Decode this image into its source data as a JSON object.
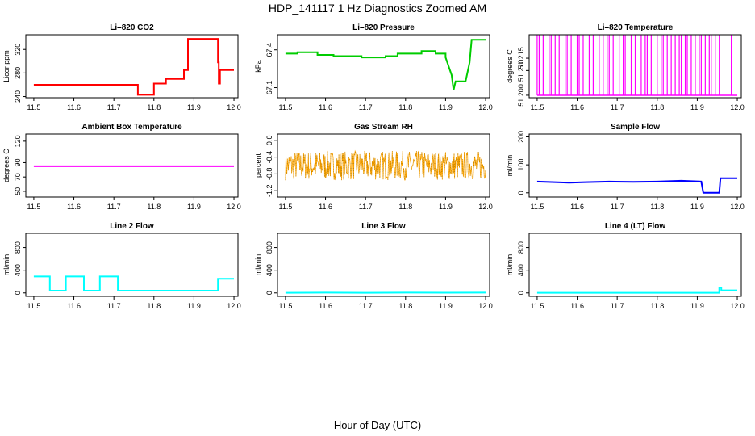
{
  "figure": {
    "title": "HDP_141117  1 Hz Diagnostics Zoomed AM",
    "xlabel": "Hour of Day (UTC)"
  },
  "chart_data": [
    {
      "type": "line",
      "title": "Li–820 CO2",
      "ylabel": "Licor ppm",
      "color": "#ff0000",
      "xlim": [
        11.48,
        12.01
      ],
      "ylim": [
        238,
        345
      ],
      "xticks": [
        "11.5",
        "11.6",
        "11.7",
        "11.8",
        "11.9",
        "12.0"
      ],
      "yticks": [
        "240",
        "280",
        "320"
      ],
      "ytick_values": [
        240,
        280,
        320
      ],
      "series": [
        {
          "name": "CO2",
          "x": [
            11.5,
            11.76,
            11.76,
            11.8,
            11.8,
            11.83,
            11.83,
            11.875,
            11.875,
            11.885,
            11.885,
            11.96,
            11.96,
            11.962,
            11.962,
            11.965,
            11.965,
            12.0
          ],
          "y": [
            260,
            260,
            243,
            243,
            262,
            262,
            270,
            270,
            285,
            285,
            338,
            338,
            298,
            298,
            262,
            262,
            285,
            285
          ]
        }
      ]
    },
    {
      "type": "line",
      "title": "Li–820 Pressure",
      "ylabel": "kPa",
      "color": "#00cc00",
      "xlim": [
        11.48,
        12.01
      ],
      "ylim": [
        67.02,
        67.52
      ],
      "xticks": [
        "11.5",
        "11.6",
        "11.7",
        "11.8",
        "11.9",
        "12.0"
      ],
      "yticks": [
        "67.1",
        "67.4"
      ],
      "ytick_values": [
        67.1,
        67.4
      ],
      "series": [
        {
          "name": "Pressure",
          "x": [
            11.5,
            11.53,
            11.53,
            11.58,
            11.58,
            11.62,
            11.62,
            11.69,
            11.69,
            11.75,
            11.75,
            11.78,
            11.78,
            11.84,
            11.84,
            11.875,
            11.875,
            11.9,
            11.9,
            11.915,
            11.92,
            11.925,
            11.95,
            11.96,
            11.965,
            12.0
          ],
          "y": [
            67.37,
            67.37,
            67.38,
            67.38,
            67.36,
            67.36,
            67.35,
            67.35,
            67.34,
            67.34,
            67.35,
            67.35,
            67.37,
            67.37,
            67.39,
            67.39,
            67.37,
            67.37,
            67.34,
            67.2,
            67.08,
            67.15,
            67.15,
            67.3,
            67.48,
            67.48
          ]
        }
      ]
    },
    {
      "type": "line",
      "title": "Li–820 Temperature",
      "ylabel": "degrees C",
      "color": "#ff00ff",
      "xlim": [
        11.48,
        12.01
      ],
      "ylim": [
        51.199,
        51.2245
      ],
      "xticks": [
        "11.5",
        "11.6",
        "11.7",
        "11.8",
        "11.9",
        "12.0"
      ],
      "yticks": [
        "51.200",
        "51.210",
        "51.215"
      ],
      "ytick_values": [
        51.2,
        51.21,
        51.215
      ],
      "baseline": 51.2,
      "spike_value": 51.2245,
      "spikes_x": [
        11.5,
        11.505,
        11.515,
        11.53,
        11.535,
        11.545,
        11.555,
        11.57,
        11.575,
        11.585,
        11.6,
        11.605,
        11.615,
        11.63,
        11.64,
        11.655,
        11.665,
        11.675,
        11.68,
        11.69,
        11.705,
        11.715,
        11.72,
        11.735,
        11.745,
        11.76,
        11.77,
        11.775,
        11.785,
        11.8,
        11.81,
        11.815,
        11.825,
        11.835,
        11.845,
        11.855,
        11.86,
        11.87,
        11.875,
        11.885,
        11.895,
        11.905,
        11.91,
        11.92,
        11.93,
        11.935,
        11.945,
        11.955,
        11.985
      ]
    },
    {
      "type": "line",
      "title": "Ambient Box Temperature",
      "ylabel": "degrees C",
      "color": "#ff00ff",
      "xlim": [
        11.48,
        12.01
      ],
      "ylim": [
        42,
        130
      ],
      "xticks": [
        "11.5",
        "11.6",
        "11.7",
        "11.8",
        "11.9",
        "12.0"
      ],
      "yticks": [
        "50",
        "70",
        "90",
        "120"
      ],
      "ytick_values": [
        50,
        70,
        90,
        120
      ],
      "series": [
        {
          "name": "Ambient",
          "x": [
            11.5,
            12.0
          ],
          "y": [
            85,
            85
          ]
        }
      ]
    },
    {
      "type": "scatter",
      "title": "Gas Stream RH",
      "ylabel": "percent",
      "color": "#ffa500",
      "xlim": [
        11.48,
        12.01
      ],
      "ylim": [
        -1.35,
        0.15
      ],
      "xticks": [
        "11.5",
        "11.6",
        "11.7",
        "11.8",
        "11.9",
        "12.0"
      ],
      "yticks": [
        "-1.2",
        "-0.8",
        "-0.4",
        "0.0"
      ],
      "ytick_values": [
        -1.2,
        -0.8,
        -0.4,
        0.0
      ],
      "band": {
        "center": -0.6,
        "spread": 0.35,
        "x_start": 11.5,
        "x_end": 12.0
      }
    },
    {
      "type": "line",
      "title": "Sample Flow",
      "ylabel": "ml/min",
      "color": "#0000ff",
      "xlim": [
        11.48,
        12.01
      ],
      "ylim": [
        -15,
        210
      ],
      "xticks": [
        "11.5",
        "11.6",
        "11.7",
        "11.8",
        "11.9",
        "12.0"
      ],
      "yticks": [
        "0",
        "100",
        "200"
      ],
      "ytick_values": [
        0,
        100,
        200
      ],
      "series": [
        {
          "name": "Sample",
          "x": [
            11.5,
            11.58,
            11.62,
            11.68,
            11.74,
            11.8,
            11.86,
            11.91,
            11.915,
            11.955,
            11.958,
            12.0
          ],
          "y": [
            40,
            36,
            38,
            40,
            39,
            40,
            43,
            40,
            0,
            0,
            52,
            52
          ]
        }
      ]
    },
    {
      "type": "line",
      "title": "Line 2 Flow",
      "ylabel": "ml/min",
      "color": "#00ffff",
      "xlim": [
        11.48,
        12.01
      ],
      "ylim": [
        -60,
        1050
      ],
      "xticks": [
        "11.5",
        "11.6",
        "11.7",
        "11.8",
        "11.9",
        "12.0"
      ],
      "yticks": [
        "0",
        "400",
        "800"
      ],
      "ytick_values": [
        0,
        400,
        800
      ],
      "series": [
        {
          "name": "Line 2",
          "x": [
            11.5,
            11.54,
            11.54,
            11.58,
            11.58,
            11.625,
            11.625,
            11.665,
            11.665,
            11.71,
            11.71,
            11.96,
            11.96,
            12.0
          ],
          "y": [
            290,
            290,
            40,
            40,
            290,
            290,
            40,
            40,
            290,
            290,
            40,
            40,
            250,
            250
          ]
        }
      ]
    },
    {
      "type": "line",
      "title": "Line 3 Flow",
      "ylabel": "ml/min",
      "color": "#00ffff",
      "xlim": [
        11.48,
        12.01
      ],
      "ylim": [
        -60,
        1050
      ],
      "xticks": [
        "11.5",
        "11.6",
        "11.7",
        "11.8",
        "11.9",
        "12.0"
      ],
      "yticks": [
        "0",
        "400",
        "800"
      ],
      "ytick_values": [
        0,
        400,
        800
      ],
      "series": [
        {
          "name": "Line 3",
          "x": [
            11.5,
            11.6,
            11.7,
            11.8,
            11.9,
            12.0
          ],
          "y": [
            3,
            5,
            3,
            6,
            4,
            5
          ]
        }
      ]
    },
    {
      "type": "line",
      "title": "Line 4 (LT) Flow",
      "ylabel": "ml/min",
      "color": "#00ffff",
      "xlim": [
        11.48,
        12.01
      ],
      "ylim": [
        -60,
        1050
      ],
      "xticks": [
        "11.5",
        "11.6",
        "11.7",
        "11.8",
        "11.9",
        "12.0"
      ],
      "yticks": [
        "0",
        "400",
        "800"
      ],
      "ytick_values": [
        0,
        400,
        800
      ],
      "series": [
        {
          "name": "Line 4",
          "x": [
            11.5,
            11.955,
            11.955,
            11.96,
            11.96,
            12.0
          ],
          "y": [
            3,
            3,
            95,
            95,
            45,
            45
          ]
        }
      ]
    }
  ]
}
